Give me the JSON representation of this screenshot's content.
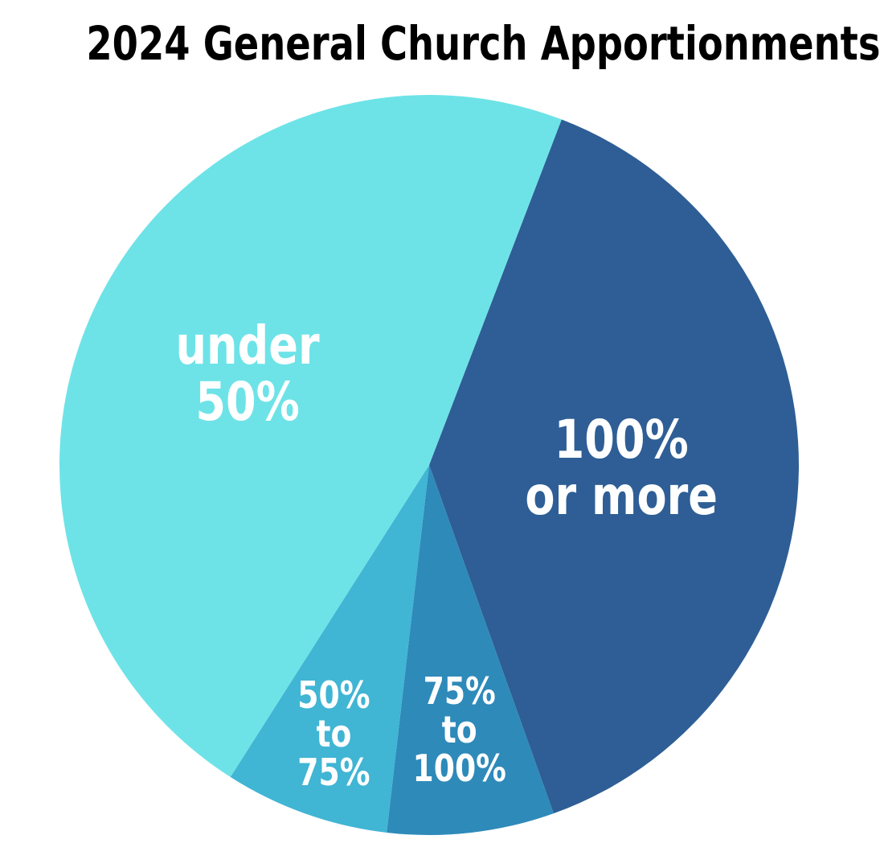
{
  "title": "2024 General Church Apportionments",
  "chart_data": {
    "type": "pie",
    "title": "2024 General Church Apportionments",
    "start_angle_deg": 21,
    "slices": [
      {
        "label": [
          "100%",
          "or more"
        ],
        "value": 38.7,
        "color": "#2e5e95"
      },
      {
        "label": [
          "75%",
          "to",
          "100%"
        ],
        "value": 7.3,
        "color": "#2e8ab9"
      },
      {
        "label": [
          "50%",
          "to",
          "75%"
        ],
        "value": 7.2,
        "color": "#41b5d4"
      },
      {
        "label": [
          "under",
          "50%"
        ],
        "value": 46.8,
        "color": "#6de3e7"
      }
    ]
  }
}
